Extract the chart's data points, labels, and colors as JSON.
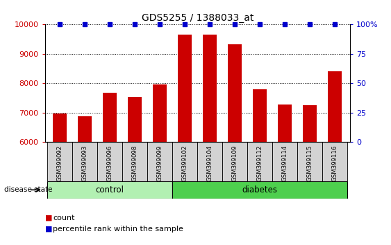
{
  "title": "GDS5255 / 1388033_at",
  "categories": [
    "GSM399092",
    "GSM399093",
    "GSM399096",
    "GSM399098",
    "GSM399099",
    "GSM399102",
    "GSM399104",
    "GSM399109",
    "GSM399112",
    "GSM399114",
    "GSM399115",
    "GSM399116"
  ],
  "counts": [
    6980,
    6870,
    7670,
    7530,
    7950,
    9650,
    9660,
    9320,
    7790,
    7290,
    7250,
    8420
  ],
  "bar_color": "#cc0000",
  "percentile_color": "#0000cc",
  "ylim_left": [
    6000,
    10000
  ],
  "ylim_right": [
    0,
    100
  ],
  "yticks_left": [
    6000,
    7000,
    8000,
    9000,
    10000
  ],
  "yticks_right": [
    0,
    25,
    50,
    75,
    100
  ],
  "ytick_labels_right": [
    "0",
    "25",
    "50",
    "75",
    "100%"
  ],
  "group_labels": [
    "control",
    "diabetes"
  ],
  "control_indices": [
    0,
    1,
    2,
    3,
    4
  ],
  "diabetes_indices": [
    5,
    6,
    7,
    8,
    9,
    10,
    11
  ],
  "control_color": "#b2f0b2",
  "diabetes_color": "#4ecf4e",
  "tick_label_area_color": "#d3d3d3",
  "disease_state_label": "disease state",
  "legend_count_label": "count",
  "legend_percentile_label": "percentile rank within the sample"
}
